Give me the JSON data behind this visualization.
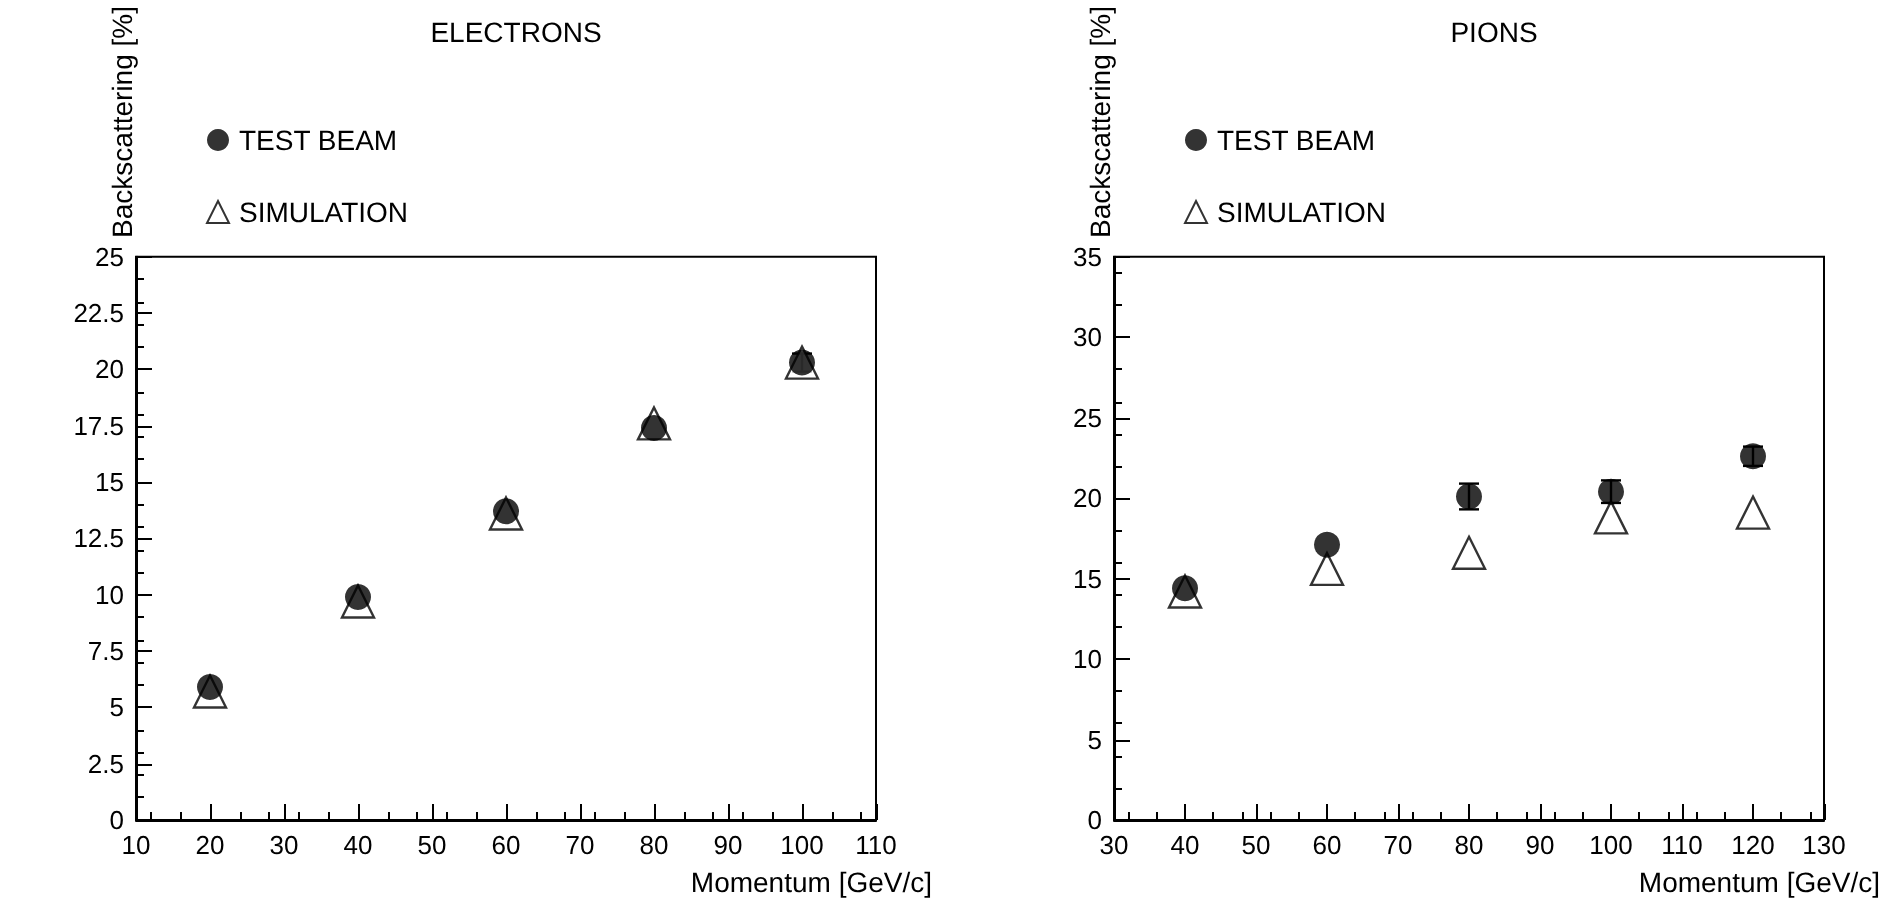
{
  "chart_data": [
    {
      "type": "scatter",
      "title": "ELECTRONS",
      "xlabel": "Momentum [GeV/c]",
      "ylabel": "Backscattering [%]",
      "x": [
        20,
        40,
        60,
        80,
        100
      ],
      "series": [
        {
          "name": "TEST BEAM",
          "color": "#000000",
          "marker": "circle",
          "values": [
            5.9,
            9.9,
            13.7,
            17.4,
            20.3
          ],
          "errors": [
            null,
            null,
            null,
            null,
            0.4
          ]
        },
        {
          "name": "SIMULATION",
          "color": "#000000",
          "marker": "triangle",
          "values": [
            5.7,
            9.7,
            13.6,
            17.6,
            20.3
          ]
        }
      ],
      "xlim": [
        10,
        110
      ],
      "xticks": [
        10,
        20,
        30,
        40,
        50,
        60,
        70,
        80,
        90,
        100,
        110
      ],
      "ylim": [
        0,
        25
      ],
      "yticks": [
        0,
        2.5,
        5,
        7.5,
        10,
        12.5,
        15,
        17.5,
        20,
        22.5,
        25
      ],
      "grid": false,
      "legend": "top left"
    },
    {
      "type": "scatter",
      "title": "PIONS",
      "xlabel": "Momentum [GeV/c]",
      "ylabel": "Backscattering [%]",
      "x": [
        40,
        60,
        80,
        100,
        120
      ],
      "series": [
        {
          "name": "TEST BEAM",
          "color": "#000000",
          "marker": "circle",
          "values": [
            14.4,
            17.1,
            20.1,
            20.4,
            22.6
          ],
          "errors": [
            null,
            null,
            0.8,
            0.7,
            0.6
          ]
        },
        {
          "name": "SIMULATION",
          "color": "#000000",
          "marker": "triangle",
          "values": [
            14.2,
            15.6,
            16.6,
            18.8,
            19.1
          ]
        }
      ],
      "xlim": [
        30,
        130
      ],
      "xticks": [
        30,
        40,
        50,
        60,
        70,
        80,
        90,
        100,
        110,
        120,
        130
      ],
      "ylim": [
        0,
        35
      ],
      "yticks": [
        0,
        5,
        10,
        15,
        20,
        25,
        30,
        35
      ],
      "grid": false,
      "legend": "top left"
    }
  ]
}
